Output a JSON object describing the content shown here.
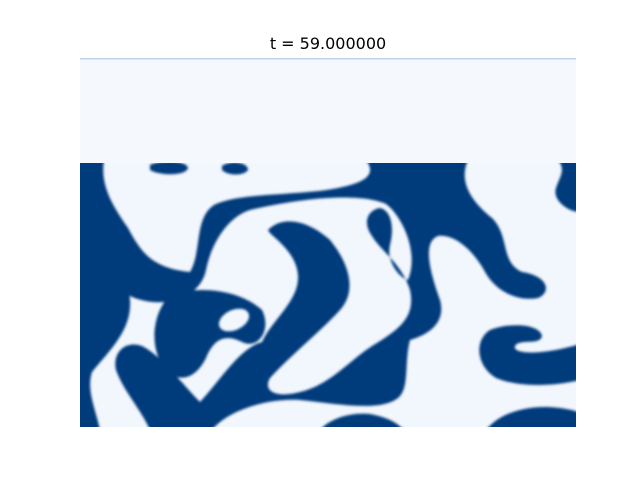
{
  "title": "t = 59.000000"
}
